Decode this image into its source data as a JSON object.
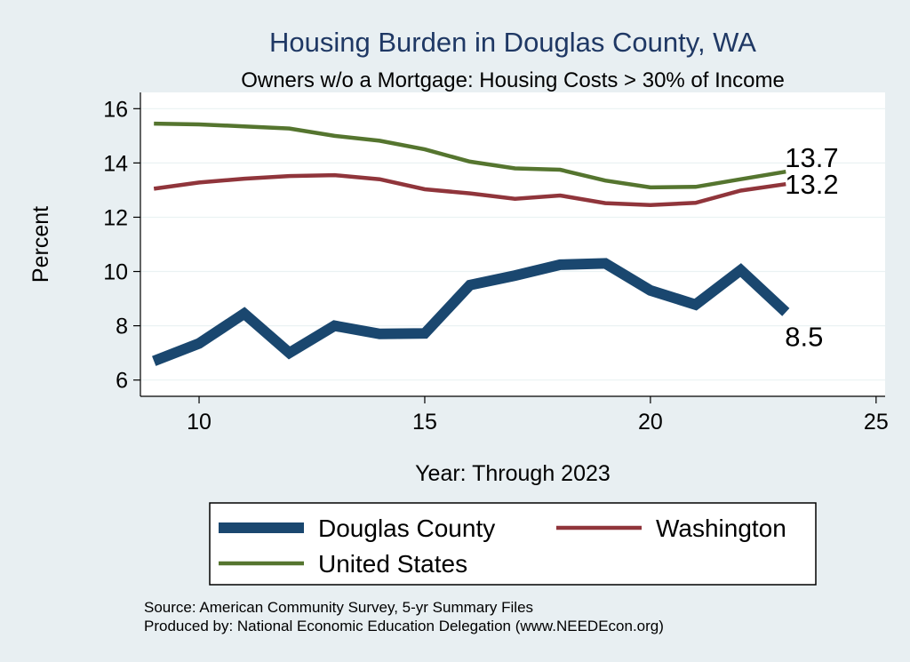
{
  "chart_data": {
    "type": "line",
    "title": "Housing Burden in Douglas County, WA",
    "subtitle": "Owners w/o a Mortgage: Housing Costs > 30% of Income",
    "xlabel": "Year: Through 2023",
    "ylabel": "Percent",
    "xlim": [
      8.7,
      25.2
    ],
    "ylim": [
      5.4,
      16.6
    ],
    "xticks": [
      10,
      15,
      20,
      25
    ],
    "yticks": [
      6,
      8,
      10,
      12,
      14,
      16
    ],
    "grid": true,
    "x": [
      9,
      10,
      11,
      12,
      13,
      14,
      15,
      16,
      17,
      18,
      19,
      20,
      21,
      22,
      23
    ],
    "series": [
      {
        "name": "Douglas County",
        "color": "#1a476f",
        "values": [
          6.7,
          7.35,
          8.45,
          7.0,
          8.0,
          7.7,
          7.72,
          9.5,
          9.85,
          10.25,
          10.3,
          9.3,
          8.78,
          10.05,
          8.5
        ],
        "end_label": "8.5"
      },
      {
        "name": "Washington",
        "color": "#90353b",
        "values": [
          13.05,
          13.28,
          13.42,
          13.52,
          13.55,
          13.4,
          13.03,
          12.88,
          12.68,
          12.8,
          12.52,
          12.45,
          12.53,
          12.98,
          13.22
        ],
        "end_label": "13.2"
      },
      {
        "name": "United States",
        "color": "#55752f",
        "values": [
          15.45,
          15.42,
          15.35,
          15.27,
          15.0,
          14.82,
          14.5,
          14.05,
          13.8,
          13.75,
          13.35,
          13.1,
          13.12,
          13.4,
          13.68
        ],
        "end_label": "13.7"
      }
    ],
    "legend": {
      "position": "bottom",
      "items": [
        "Douglas County",
        "Washington",
        "United States"
      ]
    }
  },
  "notes": {
    "source": "Source: American Community Survey, 5-yr Summary Files",
    "produced": "Produced by: National Economic Education Delegation (www.NEEDEcon.org)"
  }
}
